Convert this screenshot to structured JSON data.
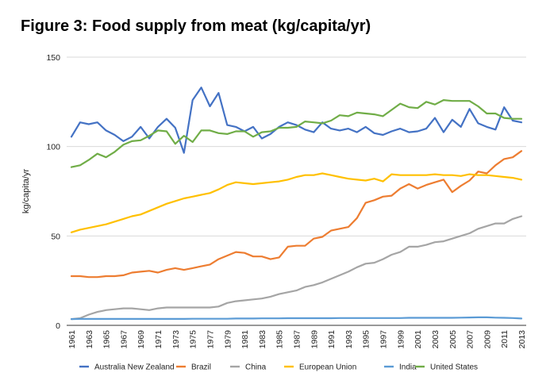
{
  "chart_data": {
    "type": "line",
    "title": "Figure 3: Food supply from meat (kg/capita/yr)",
    "xlabel": "",
    "ylabel": "kg/capita/yr",
    "ylim": [
      0,
      150
    ],
    "yticks": [
      "0",
      "50",
      "100",
      "150"
    ],
    "grid": true,
    "legend_position": "bottom",
    "x": [
      1961,
      1962,
      1963,
      1964,
      1965,
      1966,
      1967,
      1968,
      1969,
      1970,
      1971,
      1972,
      1973,
      1974,
      1975,
      1976,
      1977,
      1978,
      1979,
      1980,
      1981,
      1982,
      1983,
      1984,
      1985,
      1986,
      1987,
      1988,
      1989,
      1990,
      1991,
      1992,
      1993,
      1994,
      1995,
      1996,
      1997,
      1998,
      1999,
      2000,
      2001,
      2002,
      2003,
      2004,
      2005,
      2006,
      2007,
      2008,
      2009,
      2010,
      2011,
      2012,
      2013
    ],
    "xtick_labels": [
      "1961",
      "1963",
      "1965",
      "1967",
      "1969",
      "1971",
      "1973",
      "1975",
      "1977",
      "1979",
      "1981",
      "1983",
      "1985",
      "1987",
      "1989",
      "1991",
      "1993",
      "1995",
      "1997",
      "1999",
      "2001",
      "2003",
      "2005",
      "2007",
      "2009",
      "2011",
      "2013"
    ],
    "series": [
      {
        "name": "Australia New Zealand",
        "color": "#4472c4",
        "values": [
          105.5,
          113.5,
          112.5,
          113.5,
          109,
          106.5,
          103,
          105.5,
          111,
          104.5,
          111,
          115.5,
          110.5,
          96.5,
          126,
          133,
          122.5,
          130,
          112,
          111,
          108.5,
          111,
          104.5,
          107,
          111,
          113.5,
          112,
          109.5,
          108,
          113.5,
          110,
          109,
          110,
          108,
          111,
          107.5,
          106.5,
          108.5,
          110,
          108,
          108.5,
          110,
          116,
          108,
          115,
          111,
          121,
          113,
          111,
          109.5,
          122,
          114.5,
          113.5
        ]
      },
      {
        "name": "Brazil",
        "color": "#ed7d31",
        "values": [
          27.5,
          27.5,
          27,
          27,
          27.5,
          27.5,
          28,
          29.5,
          30,
          30.5,
          29.5,
          31,
          32,
          31,
          32,
          33,
          34,
          37,
          39,
          41,
          40.5,
          38.5,
          38.5,
          37,
          38,
          44,
          44.5,
          44.5,
          48.5,
          49.5,
          53,
          54,
          55,
          60,
          68.5,
          70,
          72,
          72.5,
          76.5,
          79,
          76.5,
          78.5,
          80,
          81.5,
          74.5,
          78,
          81,
          86,
          85,
          89.5,
          93,
          94,
          97.5
        ]
      },
      {
        "name": "China",
        "color": "#a5a5a5",
        "values": [
          3.5,
          4,
          6,
          7.5,
          8.5,
          9,
          9.5,
          9.5,
          9,
          8.5,
          9.5,
          10,
          10,
          10,
          10,
          10,
          10,
          10.5,
          12.5,
          13.5,
          14,
          14.5,
          15,
          16,
          17.5,
          18.5,
          19.5,
          21.5,
          22.5,
          24,
          26,
          28,
          30,
          32.5,
          34.5,
          35,
          37,
          39.5,
          41,
          44,
          44,
          45,
          46.5,
          47,
          48.5,
          50,
          51.5,
          54,
          55.5,
          57,
          57,
          59.5,
          61
        ]
      },
      {
        "name": "European Union",
        "color": "#ffc000",
        "values": [
          52,
          53.5,
          54.5,
          55.5,
          56.5,
          58,
          59.5,
          61,
          62,
          64,
          66,
          68,
          69.5,
          71,
          72,
          73,
          74,
          76,
          78.5,
          80,
          79.5,
          79,
          79.5,
          80,
          80.5,
          81.5,
          83,
          84,
          84,
          85,
          84,
          83,
          82,
          81.5,
          81,
          82,
          80.5,
          84.5,
          84,
          84,
          84,
          84,
          84.5,
          84,
          84,
          83.5,
          84.5,
          84,
          84,
          83.5,
          83,
          82.5,
          81.5
        ]
      },
      {
        "name": "India",
        "color": "#5b9bd5",
        "values": [
          3.5,
          3.6,
          3.6,
          3.6,
          3.6,
          3.6,
          3.6,
          3.6,
          3.6,
          3.6,
          3.6,
          3.6,
          3.6,
          3.6,
          3.7,
          3.7,
          3.7,
          3.7,
          3.7,
          3.8,
          3.8,
          3.8,
          3.9,
          3.9,
          3.9,
          4,
          4,
          4,
          4,
          4,
          4,
          4.1,
          4.1,
          4.1,
          4.1,
          4.1,
          4.1,
          4.1,
          4.1,
          4.2,
          4.2,
          4.2,
          4.2,
          4.2,
          4.2,
          4.3,
          4.4,
          4.5,
          4.5,
          4.3,
          4.2,
          4.1,
          3.8
        ]
      },
      {
        "name": "United States",
        "color": "#70ad47",
        "values": [
          88.5,
          89.5,
          92.5,
          96,
          94,
          97,
          101,
          103,
          103.5,
          106,
          109,
          108.5,
          101.5,
          106,
          102.5,
          109,
          109,
          107.5,
          107,
          108.5,
          108.5,
          105.5,
          108,
          108.5,
          110.5,
          110.5,
          111,
          114,
          113.5,
          113,
          114.5,
          117.5,
          117,
          119,
          118.5,
          118,
          117,
          120.5,
          124,
          122,
          121.5,
          125,
          123.5,
          126,
          125.5,
          125.5,
          125.5,
          122.5,
          118.5,
          118.5,
          116,
          115.5,
          115.5
        ]
      }
    ]
  }
}
